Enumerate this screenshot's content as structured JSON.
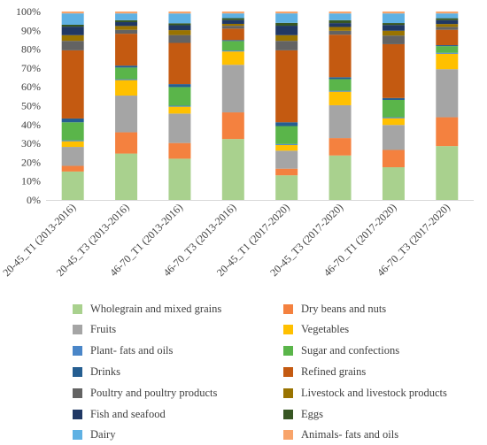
{
  "chart_data": {
    "type": "bar",
    "stacked": "percent",
    "yticks": [
      "0%",
      "10%",
      "20%",
      "30%",
      "40%",
      "50%",
      "60%",
      "70%",
      "80%",
      "90%",
      "100%"
    ],
    "ylim": [
      0,
      100
    ],
    "grid": false,
    "legend_position": "bottom",
    "categories": [
      "20-45_T1 (2013-2016)",
      "20-45_T3 (2013-2016)",
      "46-70_T1 (2013-2016)",
      "46-70_T3 (2013-2016)",
      "20-45_T1 (2017-2020)",
      "20-45_T3 (2017-2020)",
      "46-70_T1 (2017-2020)",
      "46-70_T3 (2017-2020)"
    ],
    "series": [
      {
        "name": "Wholegrain and mixed grains",
        "color": "#a9d18e",
        "values": [
          15,
          24,
          21,
          32,
          13,
          23,
          17,
          28
        ]
      },
      {
        "name": "Dry beans and nuts",
        "color": "#f4813f",
        "values": [
          3,
          11,
          8,
          14,
          3.5,
          9,
          9,
          15
        ]
      },
      {
        "name": "Fruits",
        "color": "#a5a5a5",
        "values": [
          10,
          19,
          15,
          25,
          9.5,
          17,
          13,
          25
        ]
      },
      {
        "name": "Vegetables",
        "color": "#ffc000",
        "values": [
          3,
          8,
          3.5,
          7,
          3,
          7,
          3.5,
          8
        ]
      },
      {
        "name": "Plant- fats and oils",
        "color": "#4a86c8",
        "values": [
          0.5,
          0.5,
          0.5,
          0.5,
          0.5,
          0.5,
          0.5,
          0.5
        ]
      },
      {
        "name": "Sugar and confections",
        "color": "#5ab54a",
        "values": [
          9.5,
          6,
          9.5,
          5,
          9.5,
          6,
          9,
          3.5
        ]
      },
      {
        "name": "Drinks",
        "color": "#255e91",
        "values": [
          2,
          1,
          1.5,
          0.5,
          2,
          1,
          1,
          0.5
        ]
      },
      {
        "name": "Refined grains",
        "color": "#c45a11",
        "values": [
          36,
          16.5,
          21,
          6,
          38,
          22,
          28,
          8
        ]
      },
      {
        "name": "Poultry and poultry products",
        "color": "#636363",
        "values": [
          5,
          2,
          4,
          1.5,
          5,
          2,
          4.5,
          1.5
        ]
      },
      {
        "name": "Livestock and livestock products",
        "color": "#997300",
        "values": [
          3,
          2,
          2.5,
          1,
          3,
          2,
          2.5,
          1.5
        ]
      },
      {
        "name": "Fish and seafood",
        "color": "#203864",
        "values": [
          4.5,
          2,
          2.5,
          2,
          5,
          2,
          3,
          2
        ]
      },
      {
        "name": "Eggs",
        "color": "#375623",
        "values": [
          1,
          1,
          1,
          1,
          1.5,
          1.5,
          1,
          1
        ]
      },
      {
        "name": "Dairy",
        "color": "#5fb1e3",
        "values": [
          6,
          3.5,
          5,
          2.5,
          5,
          3.5,
          5,
          2.5
        ]
      },
      {
        "name": "Animals- fats and oils",
        "color": "#f8a46a",
        "values": [
          1,
          1,
          1,
          1,
          1,
          1,
          1,
          1
        ]
      }
    ]
  }
}
